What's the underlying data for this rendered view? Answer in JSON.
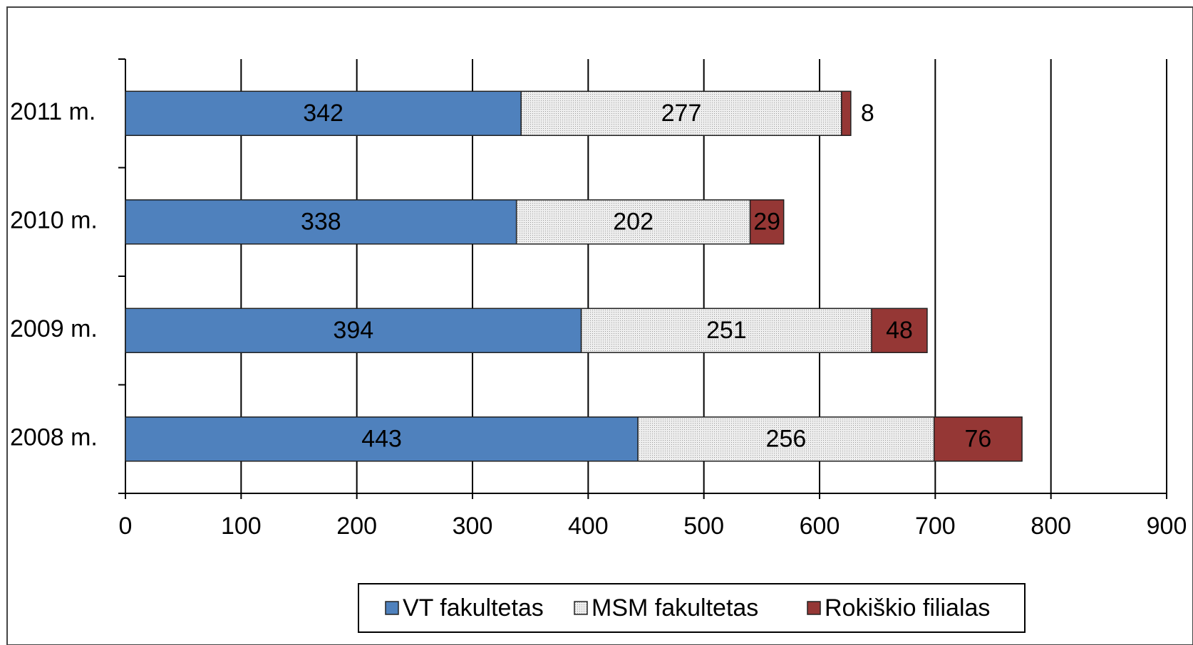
{
  "chart_data": {
    "type": "stacked_barh",
    "categories": [
      "2011 m.",
      "2010 m.",
      "2009 m.",
      "2008 m."
    ],
    "series": [
      {
        "name": "VT fakultetas",
        "color": "#4f81bd",
        "values": [
          342,
          338,
          394,
          443
        ]
      },
      {
        "name": "MSM fakultetas",
        "color": "#e3e3e3",
        "values": [
          277,
          202,
          251,
          256
        ]
      },
      {
        "name": "Rokiškio filialas",
        "color": "#953735",
        "values": [
          8,
          29,
          48,
          76
        ]
      }
    ],
    "xlim": [
      0,
      900
    ],
    "xticks": [
      0,
      100,
      200,
      300,
      400,
      500,
      600,
      700,
      800,
      900
    ],
    "grid": true,
    "legend": "bottom"
  }
}
